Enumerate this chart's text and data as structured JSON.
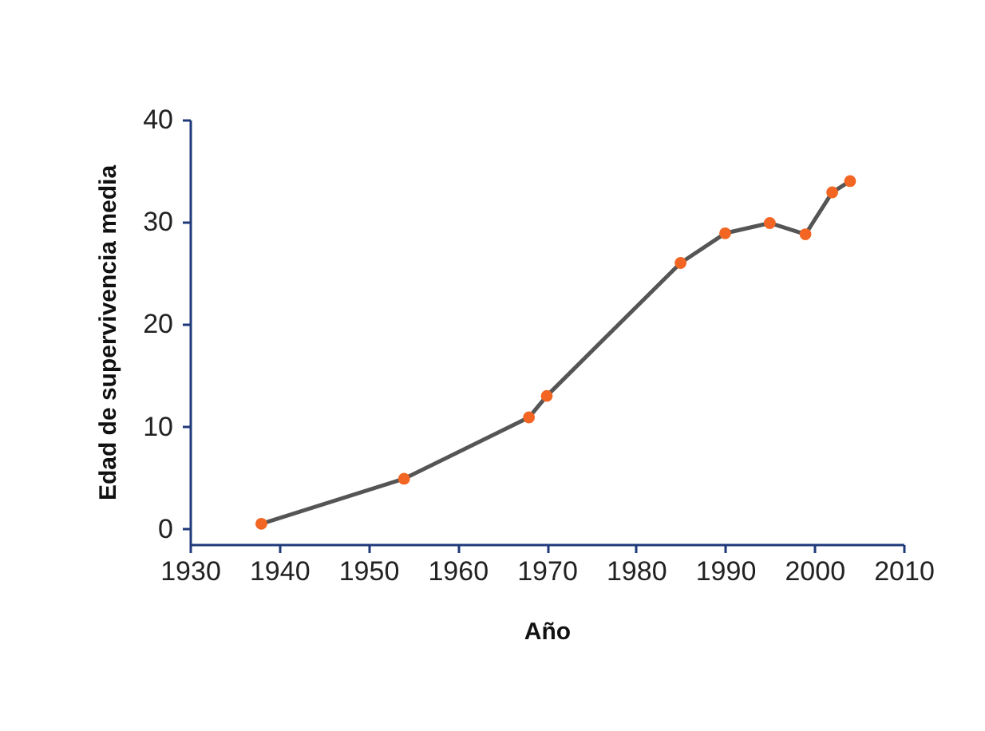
{
  "chart_data": {
    "type": "line",
    "xlabel": "Año",
    "ylabel": "Edad de supervivencia media",
    "x": [
      1938,
      1954,
      1968,
      1970,
      1985,
      1990,
      1995,
      1999,
      2002,
      2004
    ],
    "series": [
      {
        "color": "#f26522",
        "values": [
          0.5,
          4.9,
          10.9,
          13.0,
          26.0,
          28.9,
          29.9,
          28.8,
          32.9,
          34.0
        ]
      }
    ],
    "xlim": [
      1930,
      2010
    ],
    "xticks": [
      1930,
      1940,
      1950,
      1960,
      1970,
      1980,
      1990,
      2000,
      2010
    ],
    "ylim": [
      -1.5,
      40
    ],
    "yticks": [
      0,
      10,
      20,
      30,
      40
    ],
    "grid": false,
    "marker": "circle",
    "line_style": "solid",
    "legend": false
  }
}
